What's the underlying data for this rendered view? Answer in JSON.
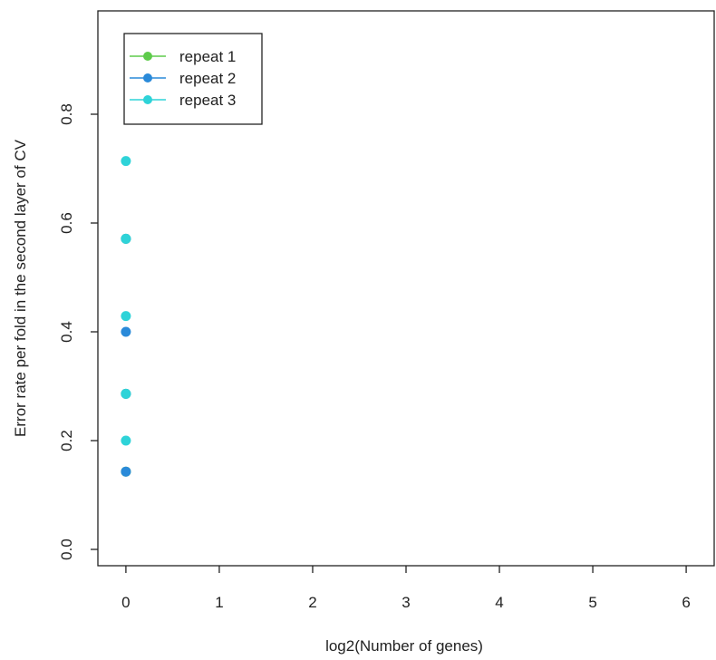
{
  "chart_data": {
    "type": "scatter",
    "title": "",
    "xlabel": "log2(Number of genes)",
    "ylabel": "Error rate per fold in the second layer of CV",
    "xlim": [
      -0.3,
      6.3
    ],
    "ylim": [
      -0.03,
      0.99
    ],
    "xticks": [
      0,
      1,
      2,
      3,
      4,
      5,
      6
    ],
    "yticks": [
      0.0,
      0.2,
      0.4,
      0.6,
      0.8
    ],
    "ytick_labels": [
      "0.0",
      "0.2",
      "0.4",
      "0.6",
      "0.8"
    ],
    "legend_position": "top-left",
    "series": [
      {
        "name": "repeat 1",
        "color": "#5ecb4b",
        "points": [
          [
            0,
            0.143
          ],
          [
            0,
            0.286
          ],
          [
            0,
            0.571
          ]
        ]
      },
      {
        "name": "repeat 2",
        "color": "#2a8ad9",
        "points": [
          [
            0,
            0.143
          ],
          [
            0,
            0.286
          ],
          [
            0,
            0.4
          ],
          [
            0,
            0.571
          ]
        ]
      },
      {
        "name": "repeat 3",
        "color": "#2ed3d8",
        "points": [
          [
            0,
            0.2
          ],
          [
            0,
            0.286
          ],
          [
            0,
            0.429
          ],
          [
            0,
            0.571
          ],
          [
            0,
            0.714
          ]
        ]
      }
    ]
  }
}
